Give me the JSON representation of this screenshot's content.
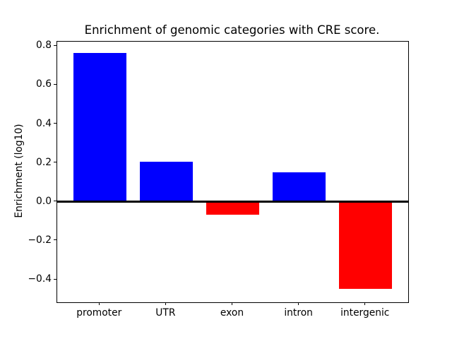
{
  "chart_data": {
    "type": "bar",
    "title": "Enrichment of genomic categories with CRE score.",
    "ylabel": "Enrichment (log10)",
    "xlabel": "",
    "categories": [
      "promoter",
      "UTR",
      "exon",
      "intron",
      "intergenic"
    ],
    "values": [
      0.765,
      0.205,
      -0.065,
      0.152,
      -0.447
    ],
    "bar_colors": [
      "#0000ff",
      "#0000ff",
      "#ff0000",
      "#0000ff",
      "#ff0000"
    ],
    "positive_color": "#0000ff",
    "negative_color": "#ff0000",
    "yticks": [
      0.8,
      0.6,
      0.4,
      0.2,
      0.0,
      -0.2,
      -0.4
    ],
    "ytick_labels": [
      "0.8",
      "0.6",
      "0.4",
      "0.2",
      "0.0",
      "−0.2",
      "−0.4"
    ],
    "ylim": [
      -0.516,
      0.823
    ],
    "xlim": [
      -0.64,
      4.64
    ],
    "bar_width_fraction": 0.8,
    "grid": false,
    "legend": null,
    "zero_line_color": "#000000",
    "background_color": "#ffffff"
  }
}
